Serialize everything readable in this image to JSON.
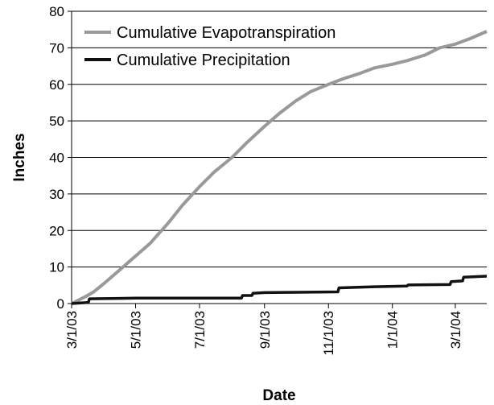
{
  "chart_data": {
    "type": "line",
    "title": "",
    "xlabel": "Date",
    "ylabel": "Inches",
    "ylim": [
      0,
      80
    ],
    "yticks": [
      0,
      10,
      20,
      30,
      40,
      50,
      60,
      70,
      80
    ],
    "xlim": [
      "2003-03-01",
      "2004-03-31"
    ],
    "xticks": [
      {
        "date": "2003-03-01",
        "label": "3/1/03"
      },
      {
        "date": "2003-05-01",
        "label": "5/1/03"
      },
      {
        "date": "2003-07-01",
        "label": "7/1/03"
      },
      {
        "date": "2003-09-01",
        "label": "9/1/03"
      },
      {
        "date": "2003-11-01",
        "label": "11/1/03"
      },
      {
        "date": "2004-01-01",
        "label": "1/1/04"
      },
      {
        "date": "2004-03-01",
        "label": "3/1/04"
      }
    ],
    "grid": "horizontal",
    "legend_position": "top-left",
    "series": [
      {
        "name": "Cumulative Evapotranspiration",
        "color": "#999999",
        "step": false,
        "points": [
          [
            "2003-03-01",
            0
          ],
          [
            "2003-03-08",
            1
          ],
          [
            "2003-03-15",
            2
          ],
          [
            "2003-03-22",
            3.2
          ],
          [
            "2003-04-01",
            5.5
          ],
          [
            "2003-04-15",
            9
          ],
          [
            "2003-05-01",
            13
          ],
          [
            "2003-05-15",
            16.5
          ],
          [
            "2003-06-01",
            22
          ],
          [
            "2003-06-15",
            27
          ],
          [
            "2003-07-01",
            32
          ],
          [
            "2003-07-15",
            36
          ],
          [
            "2003-08-01",
            40
          ],
          [
            "2003-08-15",
            44
          ],
          [
            "2003-09-01",
            48.5
          ],
          [
            "2003-09-15",
            52
          ],
          [
            "2003-10-01",
            55.5
          ],
          [
            "2003-10-15",
            58
          ],
          [
            "2003-11-01",
            60
          ],
          [
            "2003-11-15",
            61.5
          ],
          [
            "2003-12-01",
            63
          ],
          [
            "2003-12-15",
            64.5
          ],
          [
            "2004-01-01",
            65.5
          ],
          [
            "2004-01-15",
            66.5
          ],
          [
            "2004-02-01",
            68
          ],
          [
            "2004-02-15",
            70
          ],
          [
            "2004-03-01",
            71
          ],
          [
            "2004-03-15",
            72.5
          ],
          [
            "2004-03-31",
            74.5
          ]
        ]
      },
      {
        "name": "Cumulative Precipitation",
        "color": "#111111",
        "step": true,
        "points": [
          [
            "2003-03-01",
            0
          ],
          [
            "2003-03-17",
            0.3
          ],
          [
            "2003-03-18",
            1.3
          ],
          [
            "2003-04-15",
            1.4
          ],
          [
            "2003-05-01",
            1.5
          ],
          [
            "2003-08-10",
            1.5
          ],
          [
            "2003-08-11",
            2.2
          ],
          [
            "2003-08-20",
            2.2
          ],
          [
            "2003-08-21",
            2.8
          ],
          [
            "2003-09-01",
            3
          ],
          [
            "2003-11-10",
            3.2
          ],
          [
            "2003-11-11",
            4.3
          ],
          [
            "2003-12-15",
            4.6
          ],
          [
            "2004-01-15",
            4.8
          ],
          [
            "2004-01-16",
            5.1
          ],
          [
            "2004-02-25",
            5.2
          ],
          [
            "2004-02-26",
            6.0
          ],
          [
            "2004-03-08",
            6.2
          ],
          [
            "2004-03-09",
            7.2
          ],
          [
            "2004-03-31",
            7.5
          ]
        ]
      }
    ]
  }
}
